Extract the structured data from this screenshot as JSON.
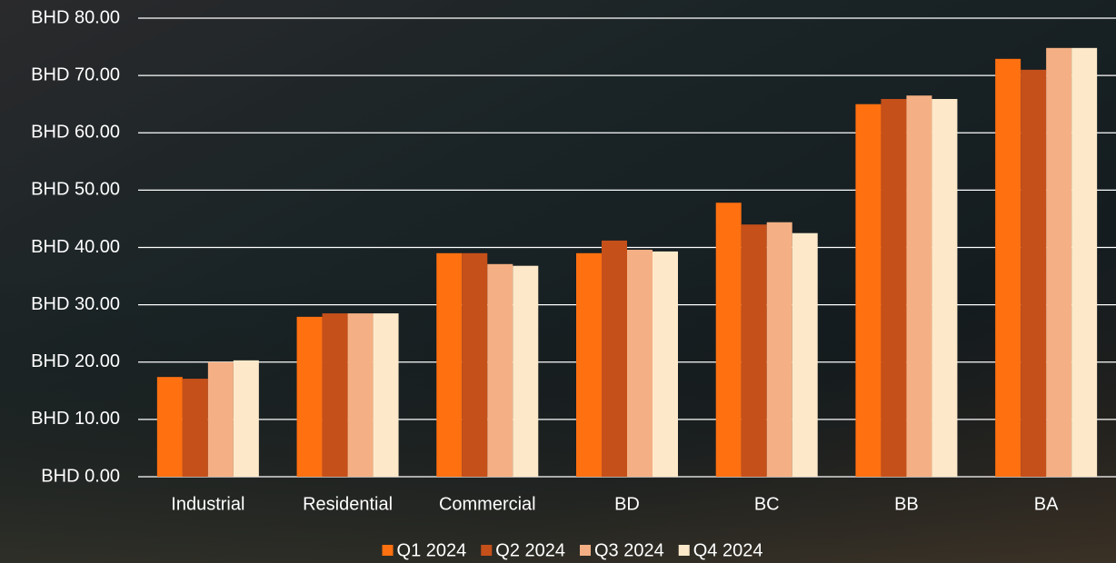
{
  "chart_data": {
    "type": "bar",
    "categories": [
      "Industrial",
      "Residential",
      "Commercial",
      "BD",
      "BC",
      "BB",
      "BA"
    ],
    "series": [
      {
        "name": "Q1 2024",
        "color": "#ff7011",
        "values": [
          17.4,
          27.9,
          39.0,
          39.0,
          47.8,
          65.0,
          72.9
        ]
      },
      {
        "name": "Q2 2024",
        "color": "#c5501a",
        "values": [
          17.1,
          28.5,
          39.0,
          41.2,
          44.0,
          65.9,
          71.0
        ]
      },
      {
        "name": "Q3 2024",
        "color": "#f4b084",
        "values": [
          20.0,
          28.5,
          37.1,
          39.6,
          44.4,
          66.5,
          74.8
        ]
      },
      {
        "name": "Q4 2024",
        "color": "#fde9c9",
        "values": [
          20.3,
          28.5,
          36.8,
          39.3,
          42.5,
          65.9,
          74.8
        ]
      }
    ],
    "ylim": [
      0,
      80
    ],
    "yticks": [
      {
        "value": 0,
        "label": "BHD 0.00"
      },
      {
        "value": 10,
        "label": "BHD 10.00"
      },
      {
        "value": 20,
        "label": "BHD 20.00"
      },
      {
        "value": 30,
        "label": "BHD 30.00"
      },
      {
        "value": 40,
        "label": "BHD 40.00"
      },
      {
        "value": 50,
        "label": "BHD 50.00"
      },
      {
        "value": 60,
        "label": "BHD 60.00"
      },
      {
        "value": 70,
        "label": "BHD 70.00"
      },
      {
        "value": 80,
        "label": "BHD 80.00"
      }
    ],
    "grid": true,
    "legend": "bottom"
  }
}
